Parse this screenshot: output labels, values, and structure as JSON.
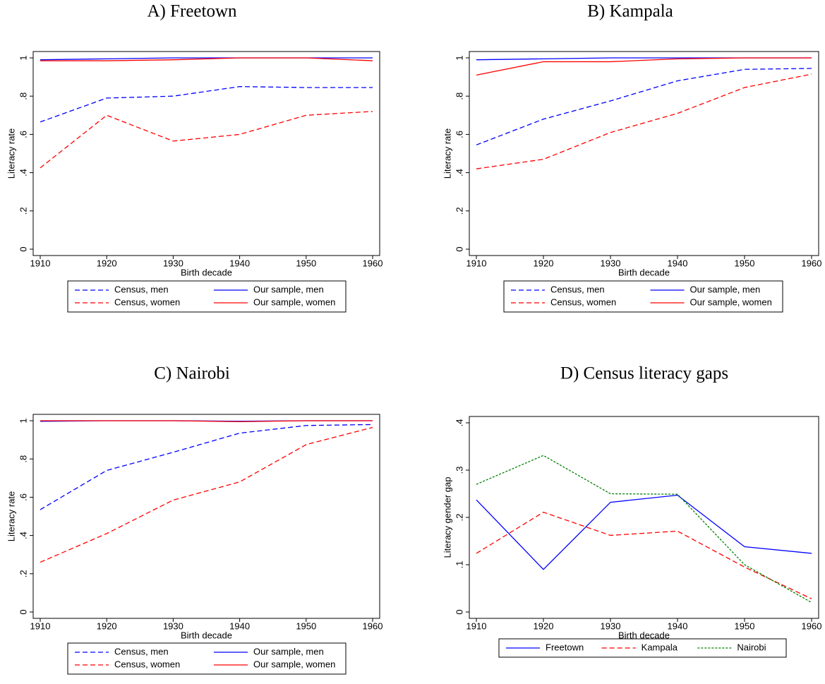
{
  "chart_data": [
    {
      "type": "line",
      "title": "A) Freetown",
      "x_label": "Birth decade",
      "y_label": "Literacy rate",
      "x": [
        1910,
        1920,
        1930,
        1940,
        1950,
        1960
      ],
      "xlim": [
        1910,
        1960
      ],
      "xticks": [
        1910,
        1920,
        1930,
        1940,
        1950,
        1960
      ],
      "ylim": [
        0,
        1
      ],
      "yticks": [
        0,
        {
          "value": 0.2,
          "label": ".2"
        },
        {
          "value": 0.4,
          "label": ".4"
        },
        {
          "value": 0.6,
          "label": ".6"
        },
        {
          "value": 0.8,
          "label": ".8"
        },
        1
      ],
      "legend_columns": 2,
      "series": [
        {
          "name": "Census, men",
          "color": "#0000ff",
          "style": "dashed",
          "values": [
            0.665,
            0.79,
            0.8,
            0.85,
            0.845,
            0.845
          ]
        },
        {
          "name": "Our sample, men",
          "color": "#0000ff",
          "style": "solid",
          "values": [
            0.99,
            0.995,
            1,
            1,
            1,
            1
          ]
        },
        {
          "name": "Census, women",
          "color": "#ff0000",
          "style": "dashed",
          "values": [
            0.425,
            0.7,
            0.565,
            0.6,
            0.7,
            0.72
          ]
        },
        {
          "name": "Our sample, women",
          "color": "#ff0000",
          "style": "solid",
          "values": [
            0.985,
            0.985,
            0.99,
            1,
            1,
            0.985
          ]
        }
      ]
    },
    {
      "type": "line",
      "title": "B) Kampala",
      "x_label": "Birth decade",
      "y_label": "Literacy rate",
      "x": [
        1910,
        1920,
        1930,
        1940,
        1950,
        1960
      ],
      "xlim": [
        1910,
        1960
      ],
      "xticks": [
        1910,
        1920,
        1930,
        1940,
        1950,
        1960
      ],
      "ylim": [
        0,
        1
      ],
      "yticks": [
        0,
        {
          "value": 0.2,
          "label": ".2"
        },
        {
          "value": 0.4,
          "label": ".4"
        },
        {
          "value": 0.6,
          "label": ".6"
        },
        {
          "value": 0.8,
          "label": ".8"
        },
        1
      ],
      "legend_columns": 2,
      "series": [
        {
          "name": "Census, men",
          "color": "#0000ff",
          "style": "dashed",
          "values": [
            0.545,
            0.68,
            0.775,
            0.88,
            0.94,
            0.945
          ]
        },
        {
          "name": "Our sample, men",
          "color": "#0000ff",
          "style": "solid",
          "values": [
            0.99,
            0.995,
            1,
            1,
            1,
            1
          ]
        },
        {
          "name": "Census, women",
          "color": "#ff0000",
          "style": "dashed",
          "values": [
            0.42,
            0.47,
            0.61,
            0.71,
            0.845,
            0.915
          ]
        },
        {
          "name": "Our sample, women",
          "color": "#ff0000",
          "style": "solid",
          "values": [
            0.91,
            0.98,
            0.98,
            0.995,
            1,
            1
          ]
        }
      ]
    },
    {
      "type": "line",
      "title": "C) Nairobi",
      "x_label": "Birth decade",
      "y_label": "Literacy rate",
      "x": [
        1910,
        1920,
        1930,
        1940,
        1950,
        1960
      ],
      "xlim": [
        1910,
        1960
      ],
      "xticks": [
        1910,
        1920,
        1930,
        1940,
        1950,
        1960
      ],
      "ylim": [
        0,
        1
      ],
      "yticks": [
        0,
        {
          "value": 0.2,
          "label": ".2"
        },
        {
          "value": 0.4,
          "label": ".4"
        },
        {
          "value": 0.6,
          "label": ".6"
        },
        {
          "value": 0.8,
          "label": ".8"
        },
        1
      ],
      "legend_columns": 2,
      "series": [
        {
          "name": "Census, men",
          "color": "#0000ff",
          "style": "dashed",
          "values": [
            0.535,
            0.74,
            0.835,
            0.935,
            0.975,
            0.98
          ]
        },
        {
          "name": "Our sample, men",
          "color": "#0000ff",
          "style": "solid",
          "values": [
            0.997,
            1,
            1,
            0.997,
            1,
            1
          ]
        },
        {
          "name": "Census, women",
          "color": "#ff0000",
          "style": "dashed",
          "values": [
            0.26,
            0.41,
            0.585,
            0.68,
            0.875,
            0.965
          ]
        },
        {
          "name": "Our sample, women",
          "color": "#ff0000",
          "style": "solid",
          "values": [
            1,
            1,
            1,
            0.995,
            1,
            1
          ]
        }
      ]
    },
    {
      "type": "line",
      "title": "D) Census literacy gaps",
      "x_label": "Birth decade",
      "y_label": "Literacy gender gap",
      "x": [
        1910,
        1920,
        1930,
        1940,
        1950,
        1960
      ],
      "xlim": [
        1910,
        1960
      ],
      "xticks": [
        1910,
        1920,
        1930,
        1940,
        1950,
        1960
      ],
      "ylim": [
        0,
        0.4
      ],
      "yticks": [
        0,
        {
          "value": 0.1,
          "label": ".1"
        },
        {
          "value": 0.2,
          "label": ".2"
        },
        {
          "value": 0.3,
          "label": ".3"
        },
        {
          "value": 0.4,
          "label": ".4"
        }
      ],
      "legend_columns": 3,
      "series": [
        {
          "name": "Freetown",
          "color": "#0000ff",
          "style": "solid",
          "values": [
            0.237,
            0.09,
            0.232,
            0.247,
            0.138,
            0.124
          ]
        },
        {
          "name": "Kampala",
          "color": "#ff0000",
          "style": "dashed",
          "values": [
            0.124,
            0.211,
            0.162,
            0.171,
            0.095,
            0.028
          ]
        },
        {
          "name": "Nairobi",
          "color": "#008000",
          "style": "dotted",
          "values": [
            0.27,
            0.331,
            0.25,
            0.249,
            0.1,
            0.02
          ]
        }
      ]
    }
  ]
}
